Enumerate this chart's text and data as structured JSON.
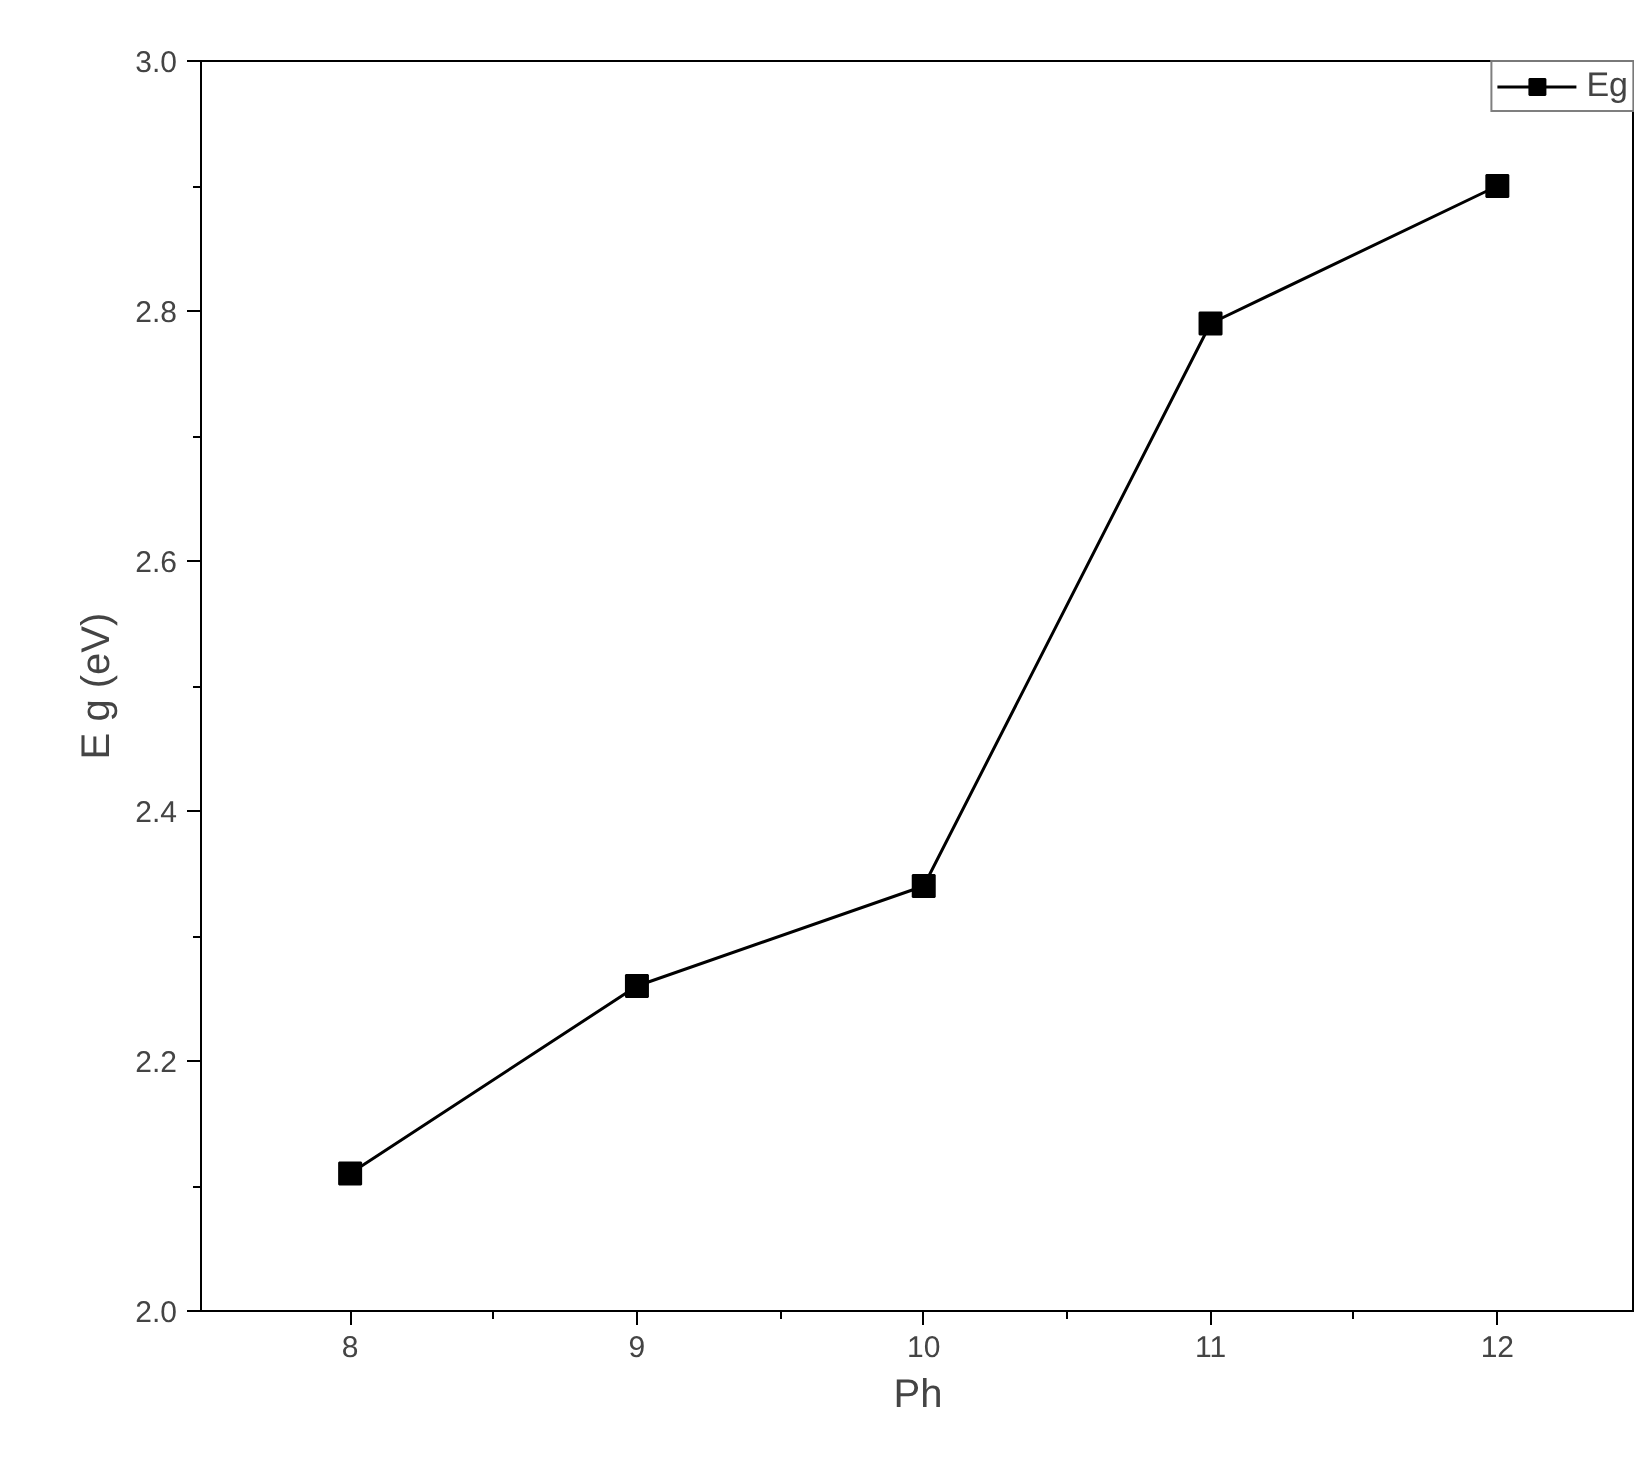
{
  "chart_data": {
    "type": "line",
    "xlabel": "Ph",
    "ylabel": "E g (eV)",
    "x": [
      8,
      9,
      10,
      11,
      12
    ],
    "series": [
      {
        "name": "Eg",
        "color": "#000000",
        "values": [
          2.11,
          2.26,
          2.34,
          2.79,
          2.9
        ]
      }
    ],
    "xlim": [
      7.48,
      12.48
    ],
    "ylim": [
      2.0,
      3.0
    ],
    "xticks": [
      8,
      9,
      10,
      11,
      12
    ],
    "yticks": [
      {
        "value": 2.0,
        "label": "2.0"
      },
      2.2,
      2.4,
      2.6,
      2.8,
      {
        "value": 3.0,
        "label": "3.0"
      }
    ],
    "marker": "square",
    "line_style": "solid",
    "grid": false,
    "legend": "top right"
  }
}
